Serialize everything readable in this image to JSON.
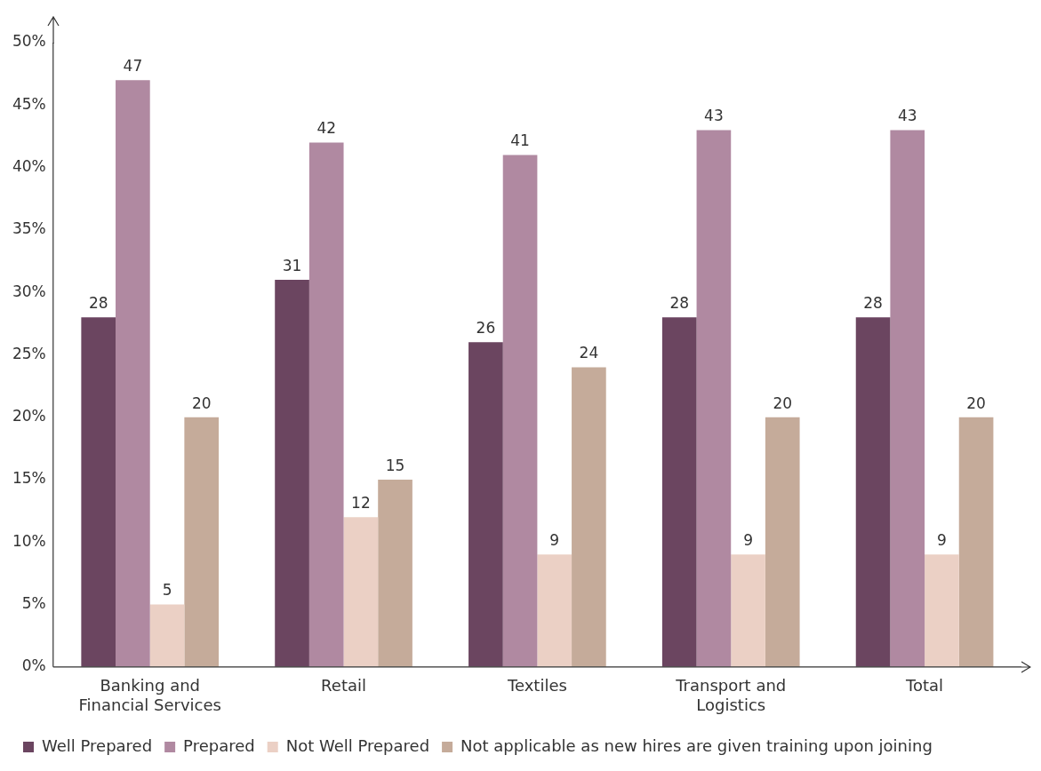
{
  "chart_data": {
    "type": "bar",
    "categories": [
      "Banking and Financial Services",
      "Retail",
      "Textiles",
      "Transport and Logistics",
      "Total"
    ],
    "series": [
      {
        "name": "Well Prepared",
        "color": "#6b4560",
        "values": [
          28,
          31,
          26,
          28,
          28
        ]
      },
      {
        "name": "Prepared",
        "color": "#b089a1",
        "values": [
          47,
          42,
          41,
          43,
          43
        ]
      },
      {
        "name": "Not Well Prepared",
        "color": "#ebd0c5",
        "values": [
          5,
          12,
          9,
          9,
          9
        ]
      },
      {
        "name": "Not applicable as new hires are given training upon joining",
        "color": "#c5ab9a",
        "values": [
          20,
          15,
          24,
          20,
          20
        ]
      }
    ],
    "ylim": [
      0,
      50
    ],
    "yticks": [
      {
        "value": 0,
        "label": "0%"
      },
      {
        "value": 5,
        "label": "5%"
      },
      {
        "value": 10,
        "label": "10%"
      },
      {
        "value": 15,
        "label": "15%"
      },
      {
        "value": 20,
        "label": "20%"
      },
      {
        "value": 25,
        "label": "25%"
      },
      {
        "value": 30,
        "label": "30%"
      },
      {
        "value": 35,
        "label": "35%"
      },
      {
        "value": 40,
        "label": "40%"
      },
      {
        "value": 45,
        "label": "45%"
      },
      {
        "value": 50,
        "label": "50%"
      }
    ],
    "grid": false,
    "legend": "bottom",
    "data_labels": true
  }
}
